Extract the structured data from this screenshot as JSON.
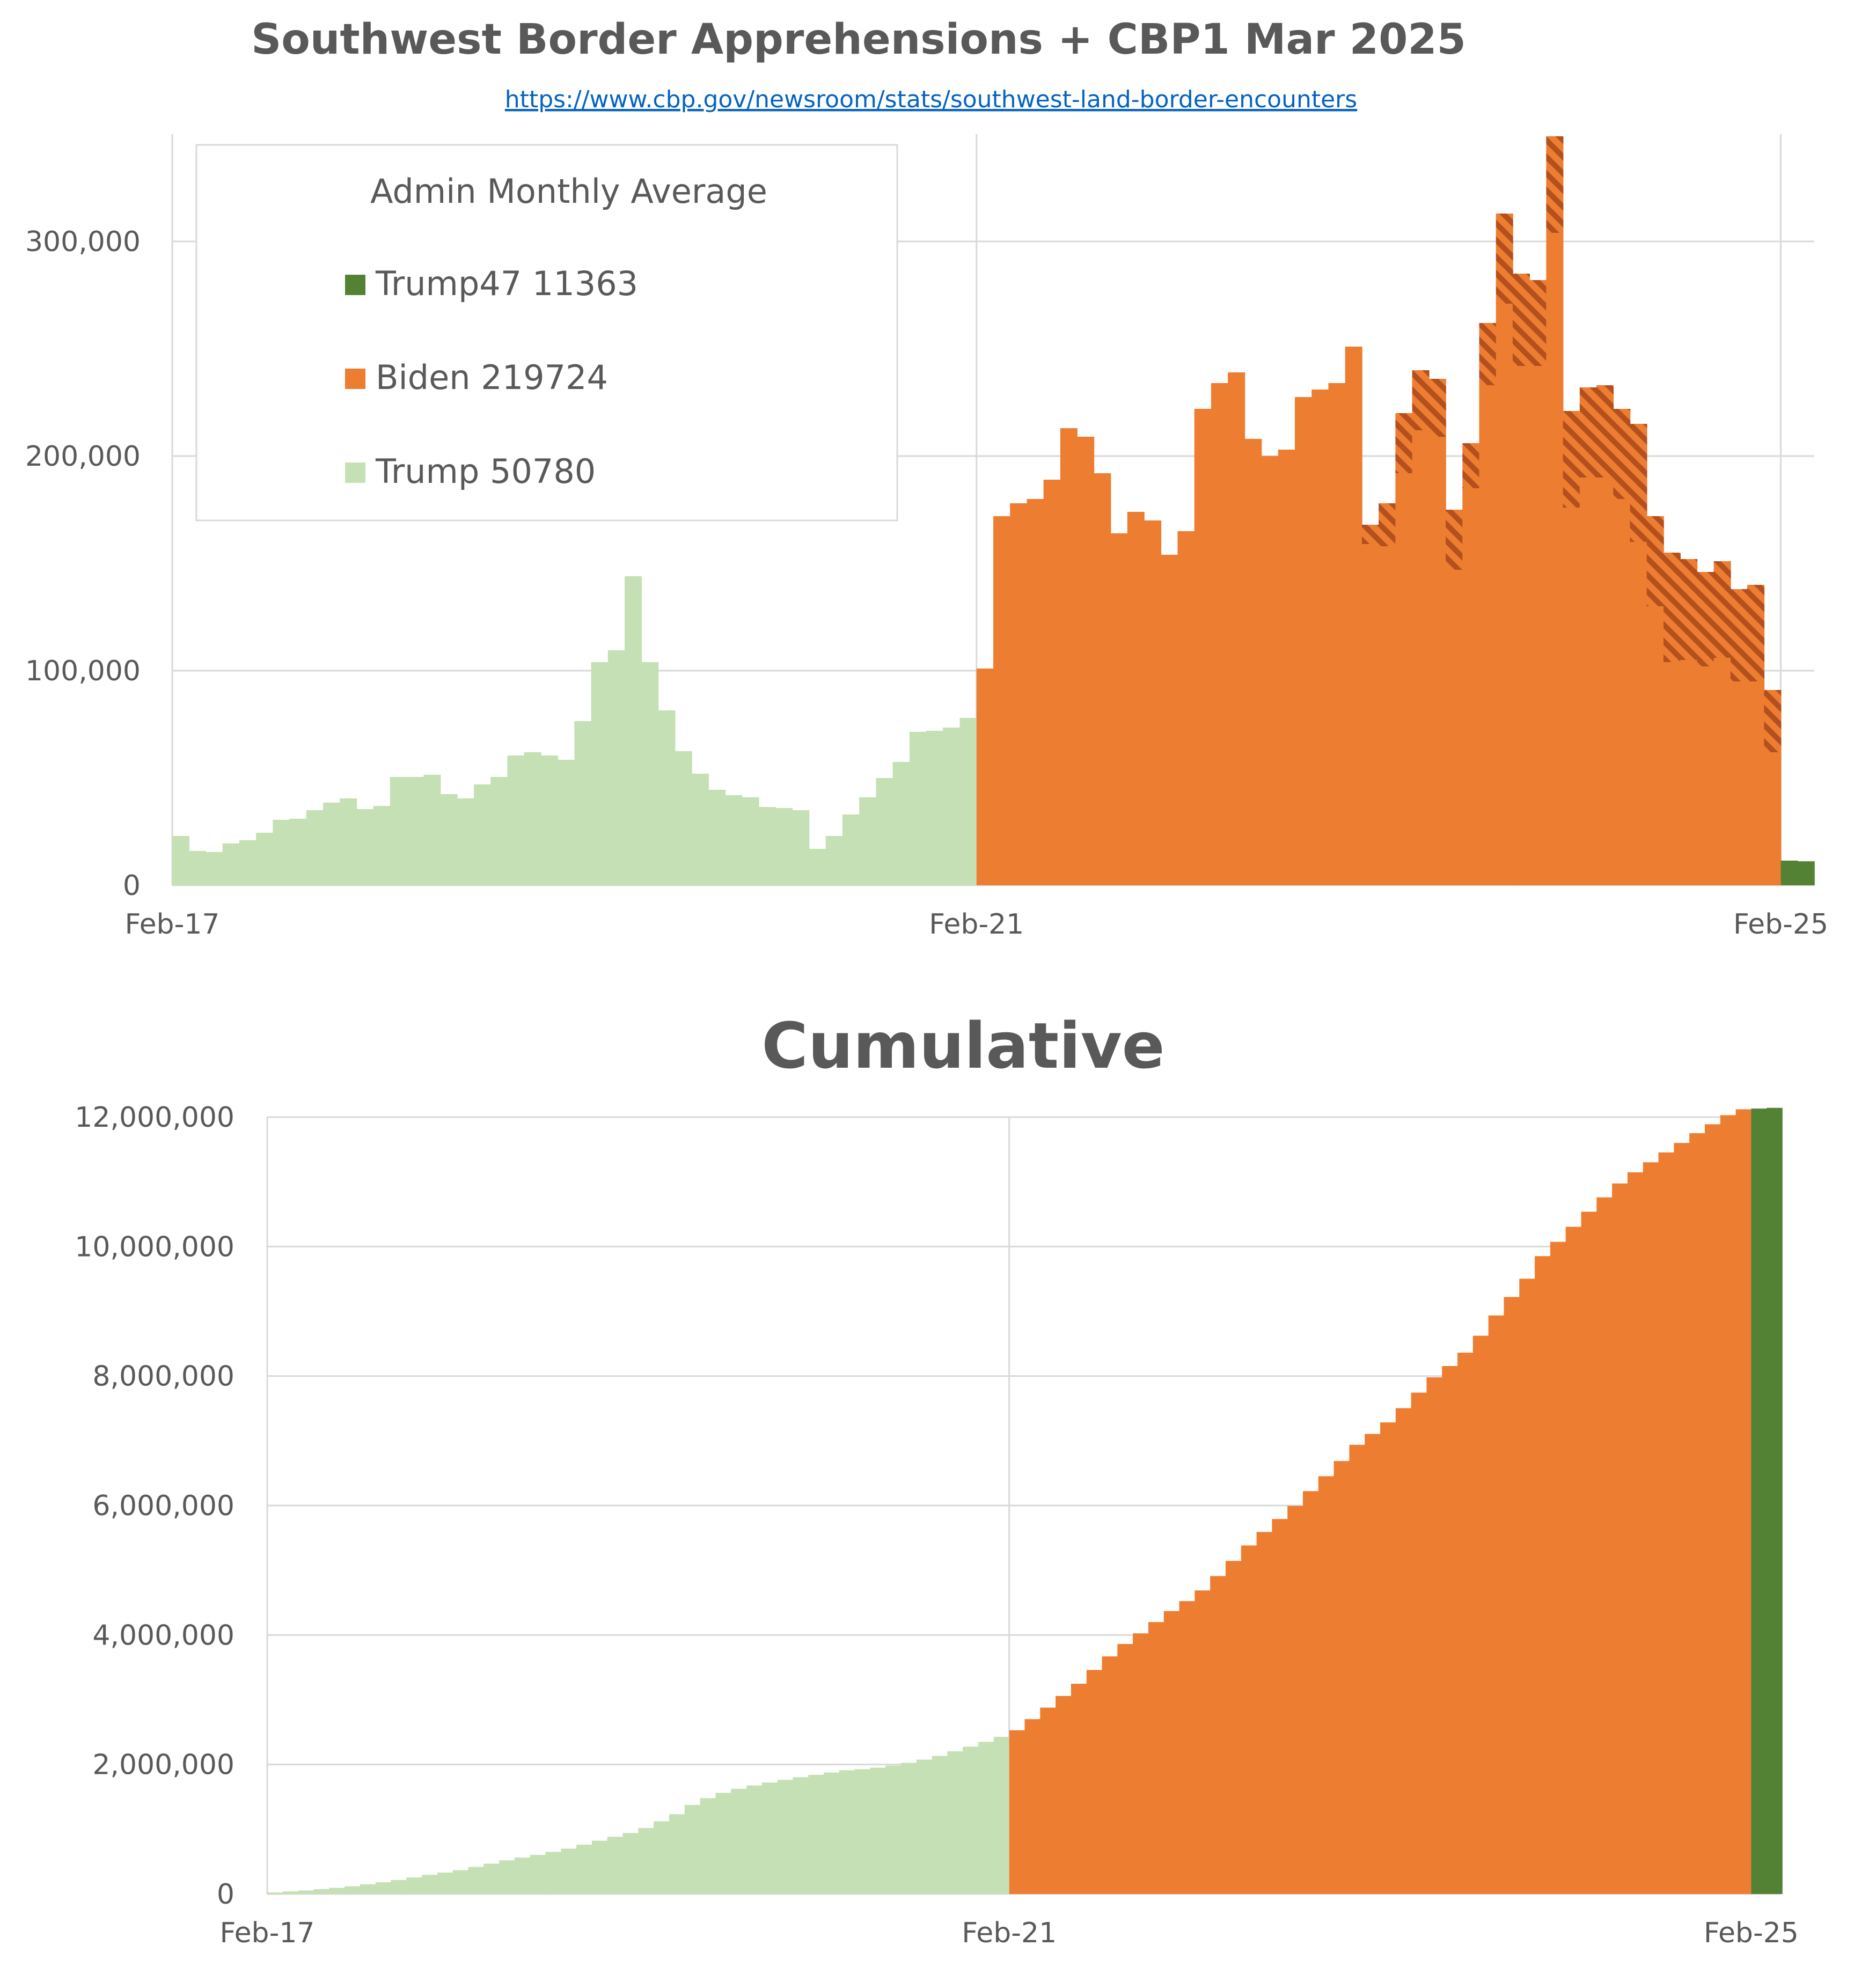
{
  "colors": {
    "trump": "#C5E0B4",
    "biden": "#ED7D31",
    "biden_hatch": "#B3501D",
    "trump47": "#548235",
    "grid": "#D9D9D9",
    "text": "#595959",
    "link": "#0563C1"
  },
  "chart_data": [
    {
      "type": "bar",
      "title": "Southwest Border Apprehensions + CBP1 Mar 2025",
      "subtitle": "https://www.cbp.gov/newsroom/stats/southwest-land-border-encounters",
      "ylim": [
        0,
        350000
      ],
      "yticks": [
        0,
        100000,
        200000,
        300000
      ],
      "ytick_labels": [
        "0",
        "100,000",
        "200,000",
        "300,000"
      ],
      "xtick_labels": [
        "Feb-17",
        "Feb-21",
        "Feb-25"
      ],
      "xtick_index": [
        0,
        48,
        96
      ],
      "grid": true,
      "legend": {
        "title": "Admin Monthly Average",
        "position": "top-left",
        "entries": [
          {
            "label": "Trump47 11363",
            "series": "trump47"
          },
          {
            "label": "Biden 219724",
            "series": "biden"
          },
          {
            "label": "Trump 50780",
            "series": "trump"
          }
        ]
      },
      "series": [
        {
          "key": "trump",
          "start_index": 0,
          "values": [
            23000,
            16000,
            15500,
            19500,
            21000,
            24500,
            30500,
            31000,
            35000,
            38500,
            40500,
            35500,
            37000,
            50500,
            50500,
            51500,
            42500,
            40500,
            47000,
            50500,
            60500,
            62000,
            60500,
            58500,
            76500,
            104000,
            109500,
            144000,
            104000,
            81500,
            62500,
            52000,
            44500,
            42000,
            41000,
            36500,
            36000,
            35000,
            17000,
            23000,
            33000,
            41000,
            50000,
            57500,
            71500,
            72000,
            73500,
            78000
          ]
        },
        {
          "key": "biden",
          "start_index": 48,
          "values": [
            101000,
            172000,
            178000,
            180000,
            189000,
            213000,
            209000,
            192000,
            164000,
            174000,
            170000,
            154000,
            165000,
            222000,
            234000,
            239000,
            208000,
            200000,
            203000,
            227500,
            231000,
            234000,
            251000,
            159000,
            158000,
            192000,
            212000,
            209000,
            147000,
            185000,
            233000,
            271000,
            242000,
            242000,
            304000,
            176000,
            190000,
            190000,
            180000,
            160000,
            130000,
            104000,
            105000,
            102000,
            106000,
            95000,
            95000,
            62000
          ],
          "cbp1_totals": [
            101000,
            172000,
            178000,
            180000,
            189000,
            213000,
            209000,
            192000,
            164000,
            174000,
            170000,
            154000,
            165000,
            222000,
            234000,
            239000,
            208000,
            200000,
            203000,
            227500,
            231000,
            234000,
            251000,
            168000,
            178000,
            220000,
            240000,
            236000,
            175000,
            206000,
            262000,
            313000,
            285000,
            282000,
            349000,
            221000,
            232000,
            233000,
            222000,
            215000,
            172000,
            155000,
            152000,
            146000,
            151000,
            138000,
            140000,
            91000
          ]
        },
        {
          "key": "trump47",
          "start_index": 96,
          "values": [
            11500,
            11200
          ]
        }
      ]
    },
    {
      "type": "bar",
      "title": "Cumulative",
      "ylim": [
        0,
        12000000
      ],
      "yticks": [
        0,
        2000000,
        4000000,
        6000000,
        8000000,
        10000000,
        12000000
      ],
      "ytick_labels": [
        "0",
        "2,000,000",
        "4,000,000",
        "6,000,000",
        "8,000,000",
        "10,000,000",
        "12,000,000"
      ],
      "xtick_labels": [
        "Feb-17",
        "Feb-21",
        "Feb-25"
      ],
      "xtick_index": [
        0,
        48,
        96
      ],
      "grid": true,
      "series": [
        {
          "key": "trump",
          "start_index": 0
        },
        {
          "key": "biden",
          "start_index": 48
        },
        {
          "key": "trump47",
          "start_index": 96
        }
      ],
      "values": [
        23000,
        39000,
        54500,
        74000,
        95000,
        119500,
        150000,
        181000,
        216000,
        254500,
        295000,
        330500,
        367500,
        418000,
        468500,
        520000,
        562500,
        603000,
        650000,
        700500,
        761000,
        823000,
        883500,
        942000,
        1018500,
        1122500,
        1232000,
        1376000,
        1480000,
        1561500,
        1624000,
        1676000,
        1720500,
        1762500,
        1803500,
        1840000,
        1876000,
        1911000,
        1928000,
        1951000,
        1984000,
        2025000,
        2075000,
        2132500,
        2204000,
        2276000,
        2349500,
        2427500,
        2528500,
        2700500,
        2878500,
        3058500,
        3247500,
        3460500,
        3669500,
        3861500,
        4025500,
        4199500,
        4369500,
        4523500,
        4688500,
        4910500,
        5144500,
        5383500,
        5591500,
        5791500,
        5994500,
        6222000,
        6453000,
        6687000,
        6938000,
        7106000,
        7284000,
        7504000,
        7744000,
        7980000,
        8155000,
        8361000,
        8623000,
        8936000,
        9221000,
        9503000,
        9852000,
        10073000,
        10305000,
        10538000,
        10760000,
        10975000,
        11147000,
        11302000,
        11454000,
        11600000,
        11751000,
        11889000,
        12029000,
        12120000,
        12131500,
        12142700
      ]
    }
  ]
}
